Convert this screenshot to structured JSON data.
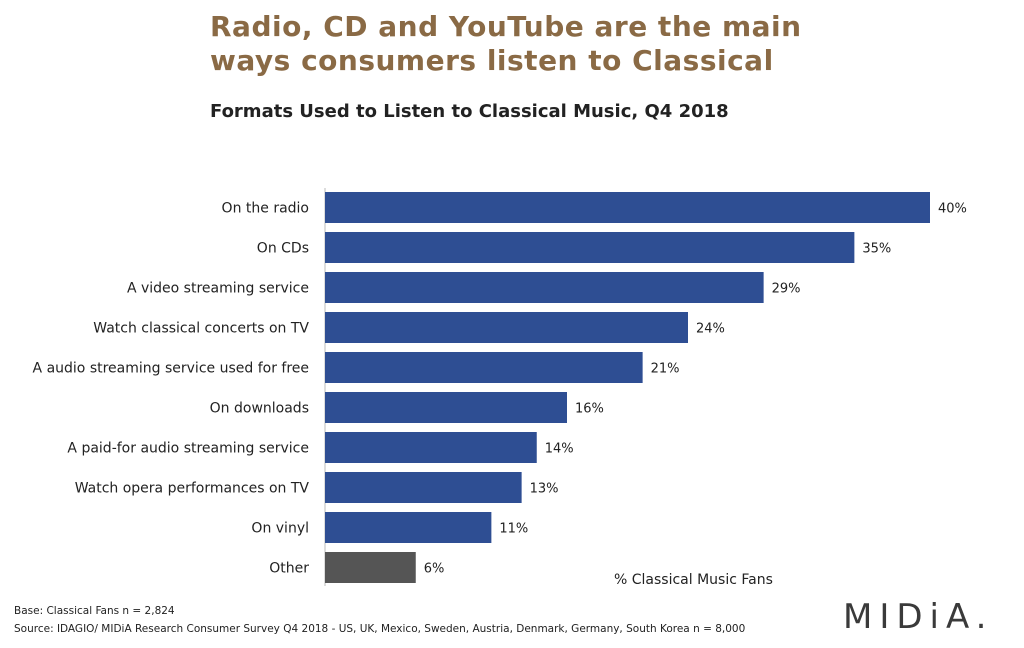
{
  "headline": {
    "line1": "Radio, CD and YouTube are the main",
    "line2": "ways consumers listen to Classical"
  },
  "subtitle": "Formats Used to Listen to Classical Music, Q4 2018",
  "axis_note": "% Classical Music Fans",
  "footnotes": {
    "base": "Base: Classical Fans n = 2,824",
    "source": "Source: IDAGIO/ MIDiA Research Consumer Survey Q4 2018 - US, UK, Mexico, Sweden, Austria, Denmark, Germany, South Korea n = 8,000"
  },
  "logo_text": "MIDiA.",
  "colors": {
    "bar": "#2e4e93",
    "bar_other": "#555555",
    "headline": "#8a6a45"
  },
  "chart_data": {
    "type": "bar",
    "orientation": "horizontal",
    "title": "Formats Used to Listen to Classical Music, Q4 2018",
    "xlabel": "% Classical Music Fans",
    "ylabel": "",
    "categories": [
      "On the radio",
      "On CDs",
      "A video streaming service",
      "Watch classical concerts on TV",
      "A audio streaming service used for free",
      "On downloads",
      "A paid-for audio streaming service",
      "Watch opera performances on TV",
      "On vinyl",
      "Other"
    ],
    "values": [
      40,
      35,
      29,
      24,
      21,
      16,
      14,
      13,
      11,
      6
    ],
    "value_labels": [
      "40%",
      "35%",
      "29%",
      "24%",
      "21%",
      "16%",
      "14%",
      "13%",
      "11%",
      "6%"
    ],
    "xlim": [
      0,
      40
    ],
    "grid": false,
    "legend": "none"
  }
}
